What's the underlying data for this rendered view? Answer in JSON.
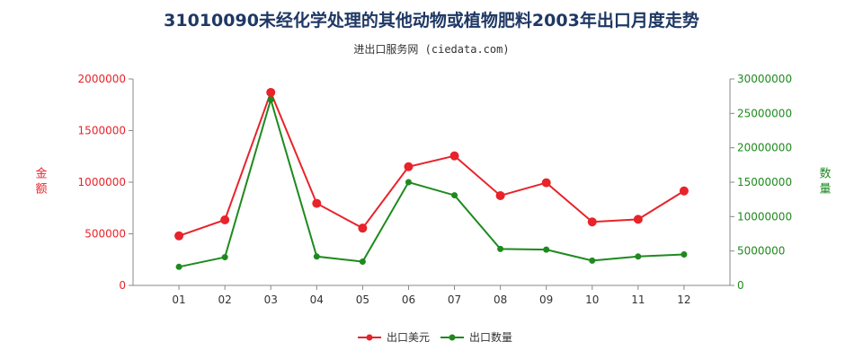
{
  "chart_data": {
    "type": "line",
    "title": "31010090未经化学处理的其他动物或植物肥料2003年出口月度走势",
    "subtitle": "进出口服务网 (ciedata.com)",
    "categories": [
      "01",
      "02",
      "03",
      "04",
      "05",
      "06",
      "07",
      "08",
      "09",
      "10",
      "11",
      "12"
    ],
    "left_axis": {
      "label": "金额",
      "range": [
        0,
        2000000
      ],
      "ticks": [
        "0",
        "500000",
        "1000000",
        "1500000",
        "2000000"
      ],
      "color": "#e8232a"
    },
    "right_axis": {
      "label": "数量",
      "range": [
        0,
        30000000
      ],
      "ticks": [
        "0",
        "5000000",
        "10000000",
        "15000000",
        "20000000",
        "25000000",
        "30000000"
      ],
      "color": "#1e8a1e"
    },
    "series": [
      {
        "name": "出口美元",
        "axis": "left",
        "color": "#e8232a",
        "values": [
          480000,
          635000,
          1870000,
          795000,
          555000,
          1150000,
          1255000,
          870000,
          995000,
          615000,
          640000,
          915000
        ]
      },
      {
        "name": "出口数量",
        "axis": "right",
        "color": "#1e8a1e",
        "values": [
          2700000,
          4100000,
          27000000,
          4200000,
          3450000,
          15000000,
          13100000,
          5300000,
          5200000,
          3600000,
          4200000,
          4500000
        ]
      }
    ],
    "legend_position": "bottom-center",
    "grid": false
  }
}
